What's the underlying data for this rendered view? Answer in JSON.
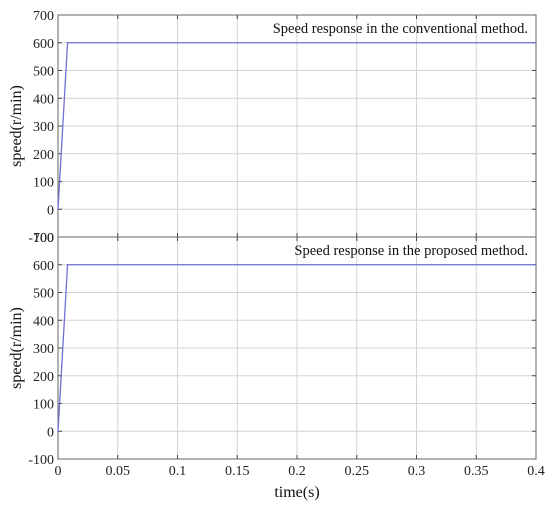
{
  "chart_data": [
    {
      "type": "line",
      "annotation": "Speed response in the conventional method.",
      "ylabel": "speed(r/min)",
      "xlabel": "",
      "xlim": [
        0,
        0.4
      ],
      "ylim": [
        -100,
        700
      ],
      "xticks": [
        0,
        0.05,
        0.1,
        0.15,
        0.2,
        0.25,
        0.3,
        0.35,
        0.4
      ],
      "yticks": [
        -100,
        0,
        100,
        200,
        300,
        400,
        500,
        600,
        700
      ],
      "ytick_labels": [
        "-100",
        "0",
        "100",
        "200",
        "300",
        "400",
        "500",
        "600",
        "700"
      ],
      "xtick_labels": [],
      "grid": true,
      "series": [
        {
          "x": [
            0,
            0.008,
            0.4
          ],
          "y": [
            0,
            600,
            600
          ],
          "color": "#6f6fd6"
        }
      ]
    },
    {
      "type": "line",
      "annotation": "Speed response in the proposed method.",
      "ylabel": "speed(r/min)",
      "xlabel": "time(s)",
      "xlim": [
        0,
        0.4
      ],
      "ylim": [
        -100,
        700
      ],
      "xticks": [
        0,
        0.05,
        0.1,
        0.15,
        0.2,
        0.25,
        0.3,
        0.35,
        0.4
      ],
      "yticks": [
        -100,
        0,
        100,
        200,
        300,
        400,
        500,
        600,
        700
      ],
      "ytick_labels": [
        "-100",
        "0",
        "100",
        "200",
        "300",
        "400",
        "500",
        "600",
        "700"
      ],
      "xtick_labels": [
        "0",
        "0.05",
        "0.1",
        "0.15",
        "0.2",
        "0.25",
        "0.3",
        "0.35",
        "0.4"
      ],
      "grid": true,
      "series": [
        {
          "x": [
            0,
            0.008,
            0.4
          ],
          "y": [
            0,
            600,
            600
          ],
          "color": "#6f6fd6"
        }
      ]
    }
  ]
}
